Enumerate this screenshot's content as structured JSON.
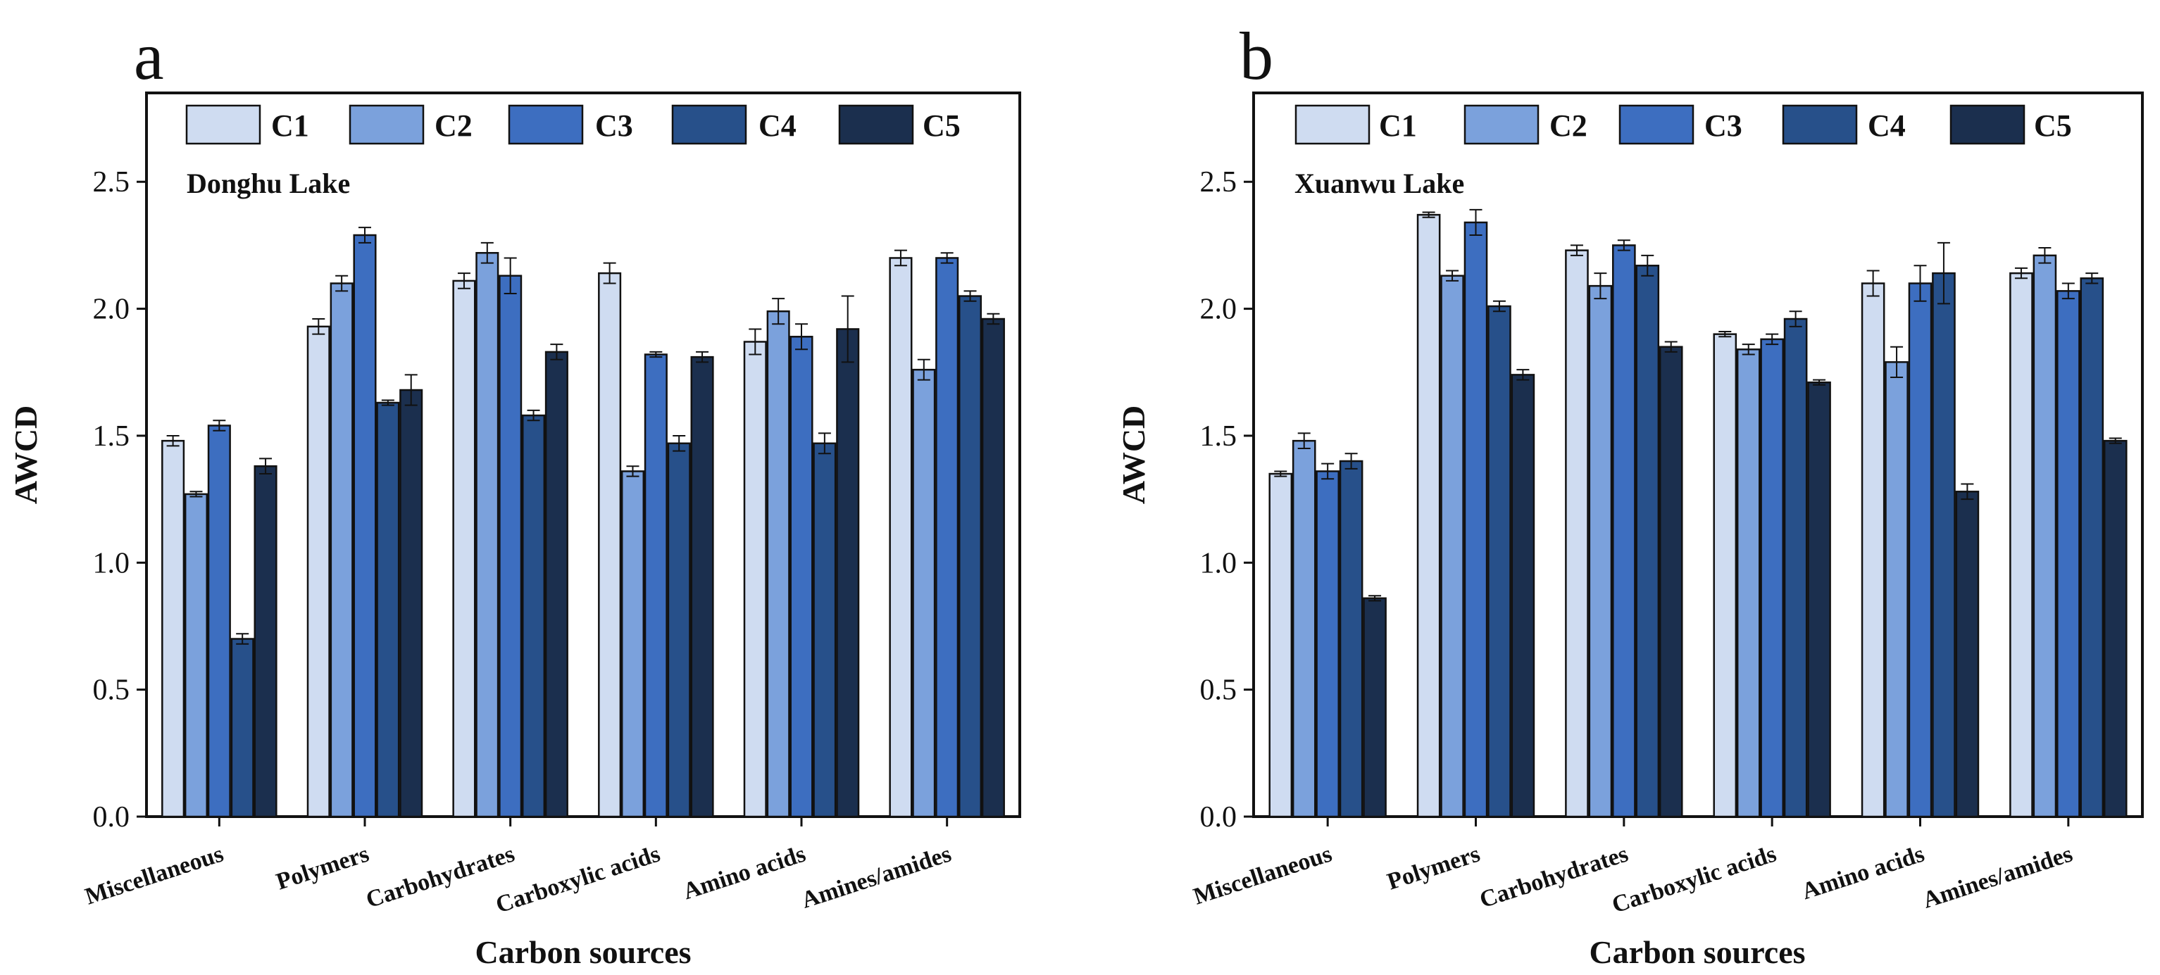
{
  "chart_data": [
    {
      "type": "bar",
      "panel_label": "a",
      "annotation": "Donghu Lake",
      "xlabel": "Carbon sources",
      "ylabel": "AWCD",
      "ylim": [
        0,
        2.85
      ],
      "yticks": [
        "0.0",
        "0.5",
        "1.0",
        "1.5",
        "2.0",
        "2.5"
      ],
      "categories": [
        "Miscellaneous",
        "Polymers",
        "Carbohydrates",
        "Carboxylic acids",
        "Amino acids",
        "Amines/amides"
      ],
      "legend_position": "top",
      "series": [
        {
          "name": "C1",
          "values": [
            1.48,
            1.93,
            2.11,
            2.14,
            1.87,
            2.2
          ],
          "errors": [
            0.02,
            0.03,
            0.03,
            0.04,
            0.05,
            0.03
          ]
        },
        {
          "name": "C2",
          "values": [
            1.27,
            2.1,
            2.22,
            1.36,
            1.99,
            1.76
          ],
          "errors": [
            0.01,
            0.03,
            0.04,
            0.02,
            0.05,
            0.04
          ]
        },
        {
          "name": "C3",
          "values": [
            1.54,
            2.29,
            2.13,
            1.82,
            1.89,
            2.2
          ],
          "errors": [
            0.02,
            0.03,
            0.07,
            0.01,
            0.05,
            0.02
          ]
        },
        {
          "name": "C4",
          "values": [
            0.7,
            1.63,
            1.58,
            1.47,
            1.47,
            2.05
          ],
          "errors": [
            0.02,
            0.01,
            0.02,
            0.03,
            0.04,
            0.02
          ]
        },
        {
          "name": "C5",
          "values": [
            1.38,
            1.68,
            1.83,
            1.81,
            1.92,
            1.96
          ],
          "errors": [
            0.03,
            0.06,
            0.03,
            0.02,
            0.13,
            0.02
          ]
        }
      ]
    },
    {
      "type": "bar",
      "panel_label": "b",
      "annotation": "Xuanwu Lake",
      "xlabel": "Carbon sources",
      "ylabel": "AWCD",
      "ylim": [
        0,
        2.85
      ],
      "yticks": [
        "0.0",
        "0.5",
        "1.0",
        "1.5",
        "2.0",
        "2.5"
      ],
      "categories": [
        "Miscellaneous",
        "Polymers",
        "Carbohydrates",
        "Carboxylic acids",
        "Amino acids",
        "Amines/amides"
      ],
      "legend_position": "top",
      "series": [
        {
          "name": "C1",
          "values": [
            1.35,
            2.37,
            2.23,
            1.9,
            2.1,
            2.14
          ],
          "errors": [
            0.01,
            0.01,
            0.02,
            0.01,
            0.05,
            0.02
          ]
        },
        {
          "name": "C2",
          "values": [
            1.48,
            2.13,
            2.09,
            1.84,
            1.79,
            2.21
          ],
          "errors": [
            0.03,
            0.02,
            0.05,
            0.02,
            0.06,
            0.03
          ]
        },
        {
          "name": "C3",
          "values": [
            1.36,
            2.34,
            2.25,
            1.88,
            2.1,
            2.07
          ],
          "errors": [
            0.03,
            0.05,
            0.02,
            0.02,
            0.07,
            0.03
          ]
        },
        {
          "name": "C4",
          "values": [
            1.4,
            2.01,
            2.17,
            1.96,
            2.14,
            2.12
          ],
          "errors": [
            0.03,
            0.02,
            0.04,
            0.03,
            0.12,
            0.02
          ]
        },
        {
          "name": "C5",
          "values": [
            0.86,
            1.74,
            1.85,
            1.71,
            1.28,
            1.48
          ],
          "errors": [
            0.01,
            0.02,
            0.02,
            0.01,
            0.03,
            0.01
          ]
        }
      ]
    }
  ],
  "colors": {
    "C1": "#cfdcf1",
    "C2": "#7ba1dc",
    "C3": "#3d6ec0",
    "C4": "#27508a",
    "C5": "#1b2f4e",
    "outline": "#111111"
  }
}
